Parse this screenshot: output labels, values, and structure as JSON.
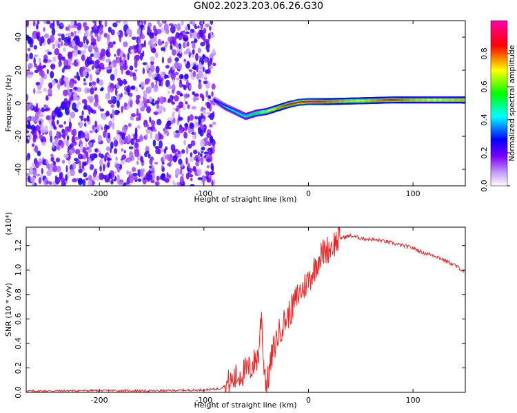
{
  "figure": {
    "title": "GN02.2023.203.06.26.G30"
  },
  "colors": {
    "snr_line": "#ee2222",
    "axis": "#000000",
    "colormap": [
      "#ffffff",
      "#7a00ff",
      "#0000ff",
      "#00ffff",
      "#00ff00",
      "#ffff00",
      "#ff0000",
      "#ff00ff"
    ]
  },
  "chart_data": [
    {
      "type": "heatmap",
      "title": "GN02.2023.203.06.26.G30",
      "xlabel": "Height of straight line (km)",
      "ylabel": "Frequency (Hz)",
      "xlim": [
        -270,
        150
      ],
      "ylim": [
        -50,
        50
      ],
      "x_ticks": [
        -200,
        -100,
        0,
        100
      ],
      "y_ticks": [
        -40,
        -20,
        0,
        20,
        40
      ],
      "colorbar": {
        "label": "Normalized spectral amplitude",
        "range": [
          0,
          1
        ],
        "ticks": [
          "0.0",
          "0.2",
          "0.4",
          "0.6",
          "0.8"
        ]
      },
      "signal_track": {
        "x": [
          -90,
          -80,
          -70,
          -60,
          -50,
          -40,
          -30,
          -20,
          -10,
          0,
          20,
          50,
          80,
          100,
          120,
          150
        ],
        "frequency": [
          2,
          -2,
          -5,
          -8,
          -6,
          -5,
          -3,
          -1,
          0.5,
          1,
          1,
          1.5,
          2,
          2,
          2,
          2
        ],
        "amplitude": [
          0.25,
          0.4,
          0.45,
          0.5,
          0.55,
          0.65,
          0.75,
          0.85,
          0.9,
          0.9,
          0.8,
          0.7,
          0.85,
          0.75,
          0.7,
          0.75
        ]
      },
      "noise_region_x": [
        -270,
        -90
      ]
    },
    {
      "type": "line",
      "xlabel": "Height of straight line (km)",
      "ylabel": "SNR (10 * v/v)",
      "scale_note": "(x10⁴)",
      "xlim": [
        -270,
        150
      ],
      "ylim": [
        0,
        1.35
      ],
      "x_ticks": [
        -200,
        -100,
        0,
        100
      ],
      "y_ticks": [
        "0.0",
        "0.2",
        "0.4",
        "0.6",
        "0.8",
        "1.0",
        "1.2"
      ],
      "series": [
        {
          "x": [
            -270,
            -200,
            -150,
            -100,
            -85,
            -75,
            -65,
            -55,
            -48,
            -45,
            -43,
            -40,
            -35,
            -30,
            -25,
            -20,
            -15,
            -10,
            -5,
            0,
            5,
            10,
            15,
            20,
            25,
            30,
            35,
            40,
            50,
            60,
            70,
            80,
            90,
            100,
            110,
            120,
            130,
            140,
            150
          ],
          "y": [
            0.01,
            0.015,
            0.012,
            0.02,
            0.03,
            0.08,
            0.15,
            0.2,
            0.3,
            0.65,
            0.25,
            0.05,
            0.3,
            0.45,
            0.55,
            0.62,
            0.7,
            0.8,
            0.85,
            0.92,
            1.0,
            1.1,
            1.15,
            1.18,
            1.22,
            1.26,
            1.27,
            1.28,
            1.26,
            1.25,
            1.24,
            1.22,
            1.2,
            1.18,
            1.14,
            1.12,
            1.08,
            1.04,
            0.98
          ]
        }
      ]
    }
  ]
}
